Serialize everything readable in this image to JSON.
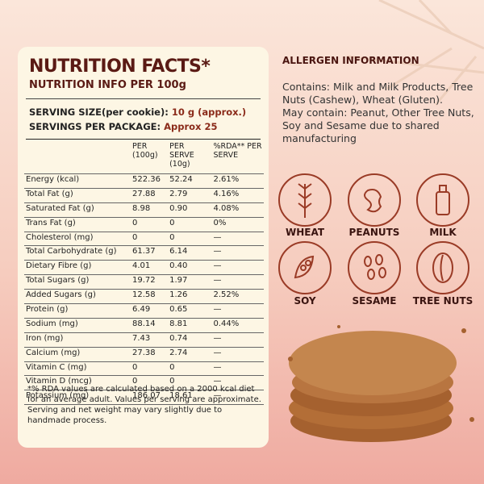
{
  "nutrition": {
    "title": "NUTRITION FACTS*",
    "subtitle": "NUTRITION INFO PER 100g",
    "serving_size_label": "SERVING SIZE(per cookie):",
    "serving_size_value": "10 g (approx.)",
    "servings_label": "SERVINGS PER PACKAGE:",
    "servings_value": "Approx 25",
    "columns": [
      "PER (100g)",
      "PER SERVE (10g)",
      "%RDA** PER SERVE"
    ],
    "rows": [
      [
        "Energy (kcal)",
        "522.36",
        "52.24",
        "2.61%"
      ],
      [
        "Total Fat (g)",
        "27.88",
        "2.79",
        "4.16%"
      ],
      [
        "Saturated Fat (g)",
        "8.98",
        "0.90",
        "4.08%"
      ],
      [
        "Trans Fat (g)",
        "0",
        "0",
        "0%"
      ],
      [
        "Cholesterol (mg)",
        "0",
        "0",
        "—"
      ],
      [
        "Total Carbohydrate (g)",
        "61.37",
        "6.14",
        "—"
      ],
      [
        "Dietary Fibre (g)",
        "4.01",
        "0.40",
        "—"
      ],
      [
        "Total Sugars (g)",
        "19.72",
        "1.97",
        "—"
      ],
      [
        "Added Sugars (g)",
        "12.58",
        "1.26",
        "2.52%"
      ],
      [
        "Protein (g)",
        "6.49",
        "0.65",
        "—"
      ],
      [
        "Sodium (mg)",
        "88.14",
        "8.81",
        "0.44%"
      ],
      [
        "Iron (mg)",
        "7.43",
        "0.74",
        "—"
      ],
      [
        "Calcium (mg)",
        "27.38",
        "2.74",
        "—"
      ],
      [
        "Vitamin C (mg)",
        "0",
        "0",
        "—"
      ],
      [
        "Vitamin D (mcg)",
        "0",
        "0",
        "—"
      ],
      [
        "Potassium (mg)",
        "186.07",
        "18.61",
        "—"
      ]
    ],
    "footnotes": [
      "*% RDA values are calculated based on a 2000 kcal diet for an average adult. Values per serving are approximate.",
      "Serving and net weight may vary slightly due to handmade process."
    ]
  },
  "allergen": {
    "title": "ALLERGEN INFORMATION",
    "contains": "Contains: Milk and Milk Products, Tree Nuts (Cashew), Wheat (Gluten).",
    "may_contain": "May contain: Peanut, Other Tree Nuts, Soy and Sesame due to shared manufacturing",
    "items": [
      "WHEAT",
      "PEANUTS",
      "MILK",
      "SOY",
      "SESAME",
      "TREE NUTS"
    ]
  }
}
